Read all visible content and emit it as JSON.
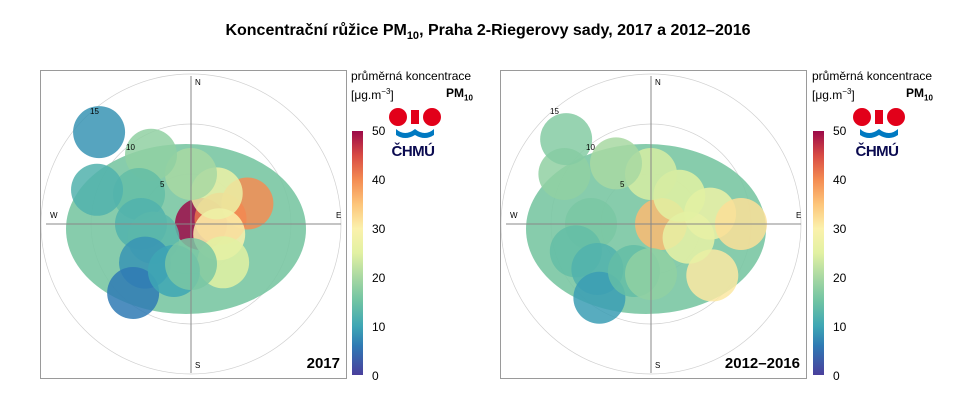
{
  "figure": {
    "title_main": "Koncentrační růžice PM",
    "title_sub": "10",
    "title_rest": ", Praha 2-Riegerovy sady, 2017 a 2012–2016"
  },
  "legend": {
    "title_line1": "průměrná koncentrace",
    "unit_base": "[μg.m",
    "unit_exp": "−3",
    "unit_close": "]",
    "pollutant": "PM",
    "pollutant_sub": "10",
    "ticks": [
      "50",
      "40",
      "30",
      "20",
      "10",
      "0"
    ],
    "colors": [
      "#4a3f9c",
      "#2f7ab4",
      "#3ea6b4",
      "#6ec3a3",
      "#a8d8a2",
      "#e2f1a2",
      "#fbf1ac",
      "#fdc57a",
      "#f48c52",
      "#d84b44",
      "#9c0a49"
    ]
  },
  "logo": {
    "text": "ČHMÚ",
    "red": "#e2001a",
    "blue": "#0079c1"
  },
  "chart_data": [
    {
      "type": "heatmap",
      "subtype": "polar concentration rose",
      "period_label": "2017",
      "compass": [
        "N",
        "E",
        "S",
        "W"
      ],
      "radial_ticks": [
        "5",
        "10",
        "15"
      ],
      "radial_axis_title": "",
      "value_range": [
        0,
        50
      ],
      "color_scale": "viridis-like diverging (blue–green–yellow–red)",
      "grid": true,
      "samples": [
        {
          "direction_deg": 90,
          "wind_speed": 1,
          "concentration": 50
        },
        {
          "direction_deg": 80,
          "wind_speed": 3,
          "concentration": 42
        },
        {
          "direction_deg": 70,
          "wind_speed": 6,
          "concentration": 40
        },
        {
          "direction_deg": 110,
          "wind_speed": 3,
          "concentration": 30
        },
        {
          "direction_deg": 140,
          "wind_speed": 5,
          "concentration": 25
        },
        {
          "direction_deg": 40,
          "wind_speed": 4,
          "concentration": 27
        },
        {
          "direction_deg": 0,
          "wind_speed": 5,
          "concentration": 20
        },
        {
          "direction_deg": 330,
          "wind_speed": 8,
          "concentration": 18
        },
        {
          "direction_deg": 300,
          "wind_speed": 6,
          "concentration": 14
        },
        {
          "direction_deg": 290,
          "wind_speed": 10,
          "concentration": 12
        },
        {
          "direction_deg": 270,
          "wind_speed": 5,
          "concentration": 12
        },
        {
          "direction_deg": 250,
          "wind_speed": 4,
          "concentration": 13
        },
        {
          "direction_deg": 230,
          "wind_speed": 6,
          "concentration": 8
        },
        {
          "direction_deg": 220,
          "wind_speed": 9,
          "concentration": 5
        },
        {
          "direction_deg": 200,
          "wind_speed": 5,
          "concentration": 10
        },
        {
          "direction_deg": 180,
          "wind_speed": 4,
          "concentration": 16
        },
        {
          "direction_deg": 315,
          "wind_speed": 13,
          "concentration": 8
        }
      ]
    },
    {
      "type": "heatmap",
      "subtype": "polar concentration rose",
      "period_label": "2012–2016",
      "compass": [
        "N",
        "E",
        "S",
        "W"
      ],
      "radial_ticks": [
        "5",
        "10",
        "15"
      ],
      "radial_axis_title": "",
      "value_range": [
        0,
        50
      ],
      "color_scale": "viridis-like diverging (blue–green–yellow–red)",
      "grid": true,
      "samples": [
        {
          "direction_deg": 90,
          "wind_speed": 1,
          "concentration": 36
        },
        {
          "direction_deg": 80,
          "wind_speed": 6,
          "concentration": 27
        },
        {
          "direction_deg": 90,
          "wind_speed": 9,
          "concentration": 32
        },
        {
          "direction_deg": 130,
          "wind_speed": 8,
          "concentration": 31
        },
        {
          "direction_deg": 110,
          "wind_speed": 4,
          "concentration": 26
        },
        {
          "direction_deg": 45,
          "wind_speed": 4,
          "concentration": 25
        },
        {
          "direction_deg": 0,
          "wind_speed": 5,
          "concentration": 24
        },
        {
          "direction_deg": 330,
          "wind_speed": 7,
          "concentration": 20
        },
        {
          "direction_deg": 300,
          "wind_speed": 10,
          "concentration": 18
        },
        {
          "direction_deg": 270,
          "wind_speed": 6,
          "concentration": 16
        },
        {
          "direction_deg": 250,
          "wind_speed": 8,
          "concentration": 14
        },
        {
          "direction_deg": 230,
          "wind_speed": 7,
          "concentration": 12
        },
        {
          "direction_deg": 215,
          "wind_speed": 9,
          "concentration": 9
        },
        {
          "direction_deg": 200,
          "wind_speed": 5,
          "concentration": 14
        },
        {
          "direction_deg": 180,
          "wind_speed": 5,
          "concentration": 18
        },
        {
          "direction_deg": 315,
          "wind_speed": 12,
          "concentration": 17
        }
      ]
    }
  ]
}
